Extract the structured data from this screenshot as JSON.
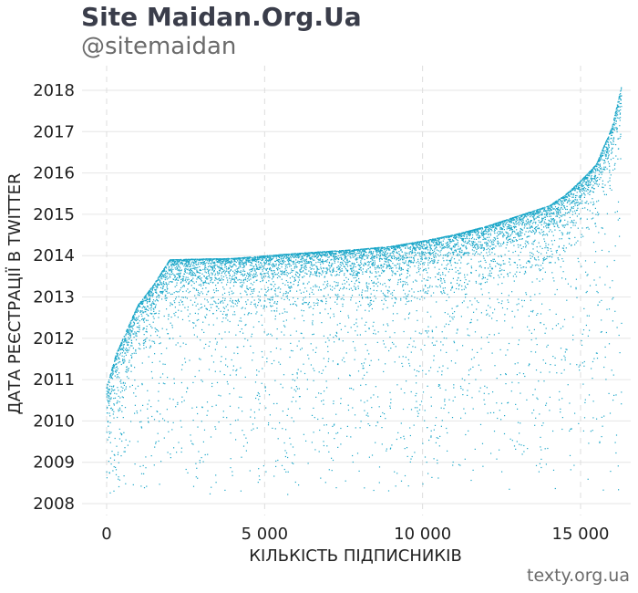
{
  "header": {
    "title": "Site Maidan.Org.Ua",
    "subtitle": "@sitemaidan"
  },
  "footer": {
    "source": "texty.org.ua"
  },
  "colors": {
    "points": "#1aa6c8",
    "grid": "#e6e6e6",
    "vgrid": "#dddddd",
    "title": "#3a3d4a"
  },
  "chart_data": {
    "type": "scatter",
    "xlabel": "КІЛЬКІСТЬ ПІДПИСНИКІВ",
    "ylabel": "ДАТА РЕЄСТРАЦІЇ В TWITTER",
    "xlim": [
      -500,
      17000
    ],
    "ylim": [
      2007.8,
      2018.2
    ],
    "x_ticks": [
      0,
      5000,
      10000,
      15000
    ],
    "x_tick_labels": [
      "0",
      "5 000",
      "10 000",
      "15 000"
    ],
    "y_ticks": [
      2008,
      2009,
      2010,
      2011,
      2012,
      2013,
      2014,
      2015,
      2016,
      2017,
      2018
    ],
    "y_tick_labels": [
      "2018",
      "2017",
      "2016",
      "2015",
      "2014",
      "2013",
      "2012",
      "2011",
      "2010",
      "2009",
      "2008"
    ],
    "grid": "horizontal solid, vertical dashed",
    "n_points": 16300,
    "frontier": {
      "description": "upper envelope of registration date by follower rank",
      "x": [
        0,
        300,
        700,
        1000,
        1500,
        2000,
        4000,
        6000,
        8000,
        9000,
        10000,
        11000,
        12000,
        13000,
        14000,
        14500,
        15000,
        15500,
        16000,
        16300
      ],
      "y": [
        2010.8,
        2011.6,
        2012.3,
        2012.8,
        2013.3,
        2013.9,
        2013.93,
        2014.05,
        2014.15,
        2014.22,
        2014.35,
        2014.5,
        2014.7,
        2014.95,
        2015.2,
        2015.45,
        2015.8,
        2016.2,
        2017.1,
        2018.1
      ]
    }
  }
}
